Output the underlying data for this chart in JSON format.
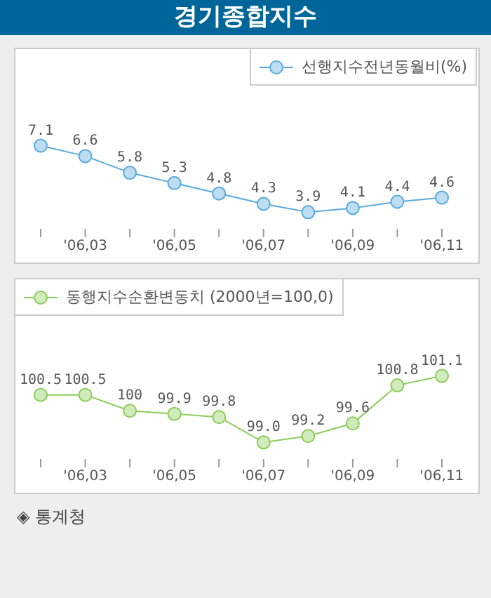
{
  "chart_data": [
    {
      "type": "line",
      "title": "경기종합지수",
      "categories": [
        null,
        "'06,03",
        null,
        "'06,05",
        null,
        "'06,07",
        null,
        "'06,09",
        null,
        "'06,11"
      ],
      "series": [
        {
          "name": "선행지수전년동월비(%)",
          "color": "#5aaade",
          "values": [
            7.1,
            6.6,
            5.8,
            5.3,
            4.8,
            4.3,
            3.9,
            4.1,
            4.4,
            4.6
          ]
        }
      ],
      "data_labels": true,
      "legend": "top right",
      "marker": "circle",
      "grid": false
    },
    {
      "type": "line",
      "categories": [
        null,
        "'06,03",
        null,
        "'06,05",
        null,
        "'06,07",
        null,
        "'06,09",
        null,
        "'06,11"
      ],
      "series": [
        {
          "name": "동행지수순환변동치 (2000년=100,0)",
          "color": "#8ccc5a",
          "values": [
            100.5,
            100.5,
            100,
            99.9,
            99.8,
            99.0,
            99.2,
            99.6,
            100.8,
            101.1
          ],
          "value_labels": [
            "100.5",
            "100.5",
            "100",
            "99.9",
            "99.8",
            "99.0",
            "99.2",
            "99.6",
            "100.8",
            "101.1"
          ]
        }
      ],
      "legend": "top left",
      "marker": "circle",
      "grid": false,
      "annotations": [
        "◈ 통계청"
      ]
    }
  ]
}
